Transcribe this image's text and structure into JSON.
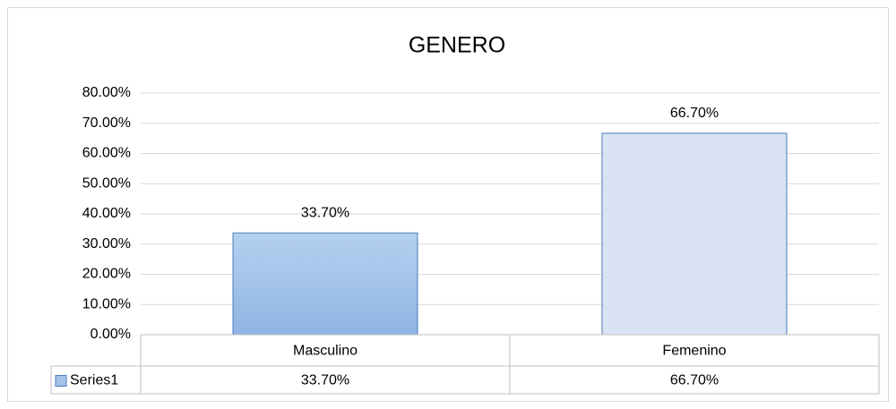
{
  "chart_data": {
    "type": "bar",
    "title": "GENERO",
    "categories": [
      "Masculino",
      "Femenino"
    ],
    "series": [
      {
        "name": "Series1",
        "colors": [
          "#a3c2e8",
          "#dae3f3"
        ],
        "legend_color": "#a3c2e8",
        "values": [
          33.7,
          66.7
        ],
        "value_labels": [
          "33.70%",
          "66.70%"
        ]
      }
    ],
    "ylim": [
      0,
      80
    ],
    "yticks": [
      {
        "value": 0,
        "label": "0.00%"
      },
      {
        "value": 10,
        "label": "10.00%"
      },
      {
        "value": 20,
        "label": "20.00%"
      },
      {
        "value": 30,
        "label": "30.00%"
      },
      {
        "value": 40,
        "label": "40.00%"
      },
      {
        "value": 50,
        "label": "50.00%"
      },
      {
        "value": 60,
        "label": "60.00%"
      },
      {
        "value": 70,
        "label": "70.00%"
      },
      {
        "value": 80,
        "label": "80.00%"
      }
    ],
    "grid": true,
    "data_table": true
  }
}
